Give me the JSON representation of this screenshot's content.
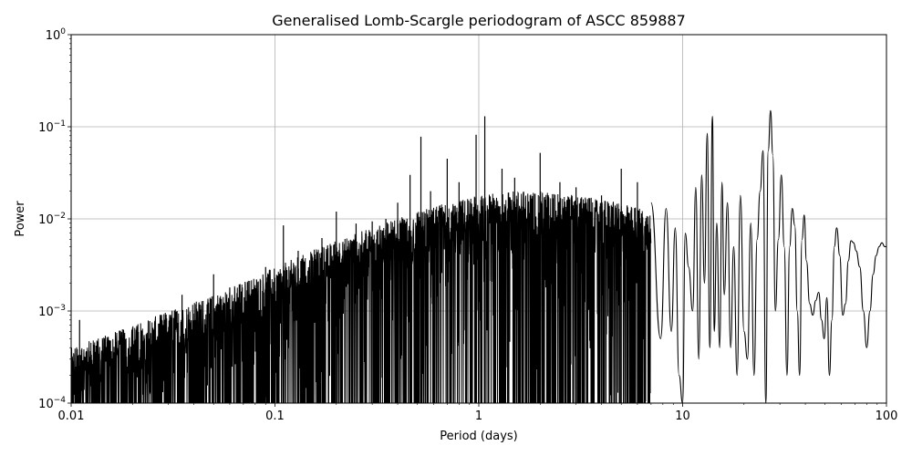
{
  "chart_data": {
    "type": "line",
    "title": "Generalised Lomb-Scargle periodogram of ASCC 859887",
    "xlabel": "Period (days)",
    "ylabel": "Power",
    "xscale": "log",
    "yscale": "log",
    "xlim": [
      0.01,
      100
    ],
    "ylim": [
      0.0001,
      1
    ],
    "grid": true,
    "line_color": "#000000",
    "x_ticks": [
      {
        "value": 0.01,
        "label": "0.01"
      },
      {
        "value": 0.1,
        "label": "0.1"
      },
      {
        "value": 1,
        "label": "1"
      },
      {
        "value": 10,
        "label": "10"
      },
      {
        "value": 100,
        "label": "100"
      }
    ],
    "y_ticks": [
      {
        "value": 0.0001,
        "mant": "10",
        "exp": "−4"
      },
      {
        "value": 0.001,
        "mant": "10",
        "exp": "−3"
      },
      {
        "value": 0.01,
        "mant": "10",
        "exp": "−2"
      },
      {
        "value": 0.1,
        "mant": "10",
        "exp": "−1"
      },
      {
        "value": 1,
        "mant": "10",
        "exp": "0"
      }
    ],
    "envelope": {
      "period": [
        0.01,
        0.02,
        0.03,
        0.05,
        0.1,
        0.2,
        0.3,
        0.5,
        0.7,
        1.0,
        1.5,
        2.0,
        3.0,
        5.0,
        7.0
      ],
      "peak_power": [
        0.0004,
        0.0007,
        0.001,
        0.0015,
        0.003,
        0.006,
        0.008,
        0.012,
        0.015,
        0.018,
        0.02,
        0.02,
        0.018,
        0.015,
        0.012
      ]
    },
    "peaks": [
      {
        "period": 0.011,
        "power": 0.0008
      },
      {
        "period": 0.035,
        "power": 0.0015
      },
      {
        "period": 0.05,
        "power": 0.0025
      },
      {
        "period": 0.06,
        "power": 0.0018
      },
      {
        "period": 0.09,
        "power": 0.003
      },
      {
        "period": 0.11,
        "power": 0.0085
      },
      {
        "period": 0.13,
        "power": 0.0045
      },
      {
        "period": 0.17,
        "power": 0.0062
      },
      {
        "period": 0.2,
        "power": 0.012
      },
      {
        "period": 0.25,
        "power": 0.0089
      },
      {
        "period": 0.3,
        "power": 0.0094
      },
      {
        "period": 0.35,
        "power": 0.01
      },
      {
        "period": 0.4,
        "power": 0.015
      },
      {
        "period": 0.46,
        "power": 0.03
      },
      {
        "period": 0.52,
        "power": 0.078
      },
      {
        "period": 0.58,
        "power": 0.02
      },
      {
        "period": 0.7,
        "power": 0.045
      },
      {
        "period": 0.8,
        "power": 0.025
      },
      {
        "period": 0.97,
        "power": 0.082
      },
      {
        "period": 1.07,
        "power": 0.13
      },
      {
        "period": 1.3,
        "power": 0.035
      },
      {
        "period": 1.5,
        "power": 0.028
      },
      {
        "period": 2.0,
        "power": 0.052
      },
      {
        "period": 2.5,
        "power": 0.025
      },
      {
        "period": 3.0,
        "power": 0.022
      },
      {
        "period": 4.0,
        "power": 0.018
      },
      {
        "period": 5.0,
        "power": 0.035
      },
      {
        "period": 6.0,
        "power": 0.025
      }
    ],
    "long_period_curve": {
      "period": [
        7.0,
        7.8,
        8.3,
        8.8,
        9.2,
        9.6,
        10.0,
        10.3,
        10.7,
        11.2,
        11.6,
        12.0,
        12.4,
        12.8,
        13.2,
        13.6,
        14.0,
        14.3,
        14.7,
        15.2,
        15.6,
        16.0,
        16.6,
        17.2,
        17.8,
        18.5,
        19.2,
        20.0,
        20.8,
        21.6,
        22.4,
        23.2,
        24.0,
        24.8,
        25.6,
        26.3,
        27.0,
        27.7,
        28.5,
        29.5,
        30.5,
        31.5,
        32.5,
        33.5,
        34.5,
        35.5,
        36.5,
        37.5,
        38.5,
        39.5,
        40.5,
        42.0,
        43.5,
        45.0,
        46.5,
        48.0,
        49.5,
        51.0,
        52.5,
        54.0,
        55.5,
        57.0,
        59.0,
        61.0,
        63.0,
        65.0,
        67.0,
        69.0,
        71.0,
        74.0,
        77.0,
        80.0,
        83.0,
        86.0,
        89.0,
        92.0,
        95.0,
        98.0,
        100.0
      ],
      "power": [
        0.015,
        0.0005,
        0.013,
        0.0006,
        0.008,
        0.0002,
        0.0001,
        0.007,
        0.003,
        0.001,
        0.022,
        0.0003,
        0.03,
        0.002,
        0.085,
        0.0004,
        0.13,
        0.0006,
        0.009,
        0.0004,
        0.025,
        0.0015,
        0.015,
        0.0004,
        0.005,
        0.0002,
        0.018,
        0.0006,
        0.0003,
        0.009,
        0.0002,
        0.006,
        0.02,
        0.055,
        0.0001,
        0.055,
        0.15,
        0.05,
        0.001,
        0.006,
        0.03,
        0.005,
        0.0002,
        0.005,
        0.013,
        0.0085,
        0.001,
        0.0002,
        0.006,
        0.011,
        0.0035,
        0.0012,
        0.0009,
        0.0013,
        0.0016,
        0.0008,
        0.0005,
        0.0014,
        0.0002,
        0.0008,
        0.005,
        0.008,
        0.004,
        0.0009,
        0.0012,
        0.0035,
        0.0058,
        0.0055,
        0.0045,
        0.003,
        0.001,
        0.0004,
        0.001,
        0.0025,
        0.004,
        0.005,
        0.0055,
        0.005,
        0.005
      ]
    }
  }
}
